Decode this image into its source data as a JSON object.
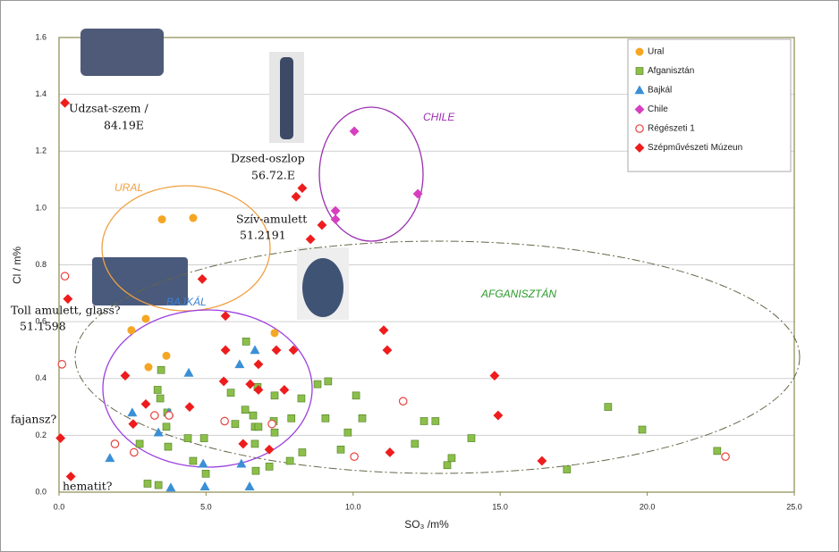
{
  "chart_data": {
    "type": "scatter",
    "x_label": "SO₃ /m%",
    "y_label": "Cl / m%",
    "xlim": [
      0,
      25
    ],
    "ylim": [
      0,
      1.6
    ],
    "xticks": [
      {
        "value": 0,
        "label": "0.0"
      },
      {
        "value": 5,
        "label": "5.0"
      },
      {
        "value": 10,
        "label": "10.0"
      },
      {
        "value": 15,
        "label": "15.0"
      },
      {
        "value": 20,
        "label": "20.0"
      },
      {
        "value": 25,
        "label": "25.0"
      }
    ],
    "yticks": [
      {
        "value": 0,
        "label": "0.0"
      },
      0.2,
      0.4,
      0.6,
      0.8,
      {
        "value": 1,
        "label": "1.0"
      },
      1.2,
      1.4,
      1.6
    ],
    "grid": true,
    "legend": "upper right",
    "annotations": [
      "URAL",
      "BAJKÁL",
      "CHILE",
      "AFGANISZTÁN",
      "Udzsat-szem /",
      "84.19E",
      "Dzsed-oszlop",
      "56.72.E",
      "Szív-amulett",
      "51.2191",
      "Toll amulett, glass?",
      "51.1598",
      "fajansz?",
      "hematit?"
    ],
    "series": [
      {
        "name": "Ural",
        "color": "#f5a623",
        "marker": "circle",
        "filled": true,
        "x": [
          3.5,
          4.56,
          2.46,
          2.95,
          3.65,
          3.04,
          7.33
        ],
        "values": [
          0.96,
          0.965,
          0.57,
          0.61,
          0.48,
          0.44,
          0.56
        ]
      },
      {
        "name": "Afganisztán",
        "color": "#8cbf4a",
        "marker": "square",
        "filled": true,
        "x": [
          3.35,
          3.44,
          3.47,
          3.68,
          3.65,
          3.71,
          2.74,
          3.01,
          3.38,
          4.38,
          4.56,
          4.93,
          4.99,
          5.84,
          5.99,
          6.36,
          6.33,
          6.6,
          6.66,
          6.66,
          6.69,
          6.75,
          6.78,
          7.3,
          7.33,
          7.33,
          7.15,
          7.9,
          7.85,
          8.24,
          8.27,
          8.79,
          9.15,
          9.06,
          9.58,
          9.82,
          10.1,
          10.31,
          12.1,
          12.41,
          12.8,
          13.2,
          13.35,
          14.02,
          17.27,
          18.67,
          19.83,
          22.38
        ],
        "values": [
          0.36,
          0.33,
          0.43,
          0.28,
          0.23,
          0.16,
          0.17,
          0.03,
          0.025,
          0.19,
          0.11,
          0.19,
          0.065,
          0.35,
          0.24,
          0.53,
          0.29,
          0.27,
          0.23,
          0.17,
          0.075,
          0.37,
          0.23,
          0.25,
          0.21,
          0.34,
          0.09,
          0.26,
          0.11,
          0.33,
          0.14,
          0.38,
          0.39,
          0.26,
          0.15,
          0.21,
          0.34,
          0.26,
          0.17,
          0.25,
          0.25,
          0.095,
          0.12,
          0.19,
          0.08,
          0.3,
          0.22,
          0.145
        ]
      },
      {
        "name": "Bajkál",
        "color": "#3b8fd6",
        "marker": "triangle",
        "filled": true,
        "x": [
          1.73,
          2.49,
          3.38,
          3.74,
          3.8,
          4.41,
          4.9,
          4.96,
          6.14,
          6.2,
          6.66,
          6.48
        ],
        "values": [
          0.12,
          0.28,
          0.21,
          0.28,
          0.016,
          0.42,
          0.1,
          0.02,
          0.45,
          0.1,
          0.5,
          0.02
        ]
      },
      {
        "name": "Chile",
        "color": "#d63fbf",
        "marker": "diamond",
        "filled": true,
        "x": [
          10.04,
          9.4,
          9.4,
          12.2
        ],
        "values": [
          1.27,
          0.99,
          0.96,
          1.05
        ]
      },
      {
        "name": "Régészeti 1",
        "color": "#e8413c",
        "marker": "circle",
        "filled": false,
        "x": [
          0.2,
          0.1,
          1.9,
          2.55,
          3.25,
          3.74,
          5.63,
          7.24,
          10.04,
          11.7,
          22.66
        ],
        "values": [
          0.76,
          0.45,
          0.17,
          0.14,
          0.27,
          0.27,
          0.25,
          0.24,
          0.125,
          0.32,
          0.125
        ]
      },
      {
        "name": "Szépművészeti Múzeun",
        "color": "#ee1c1c",
        "marker": "diamond",
        "filled": true,
        "x": [
          0.2,
          0.3,
          0.05,
          0.4,
          2.25,
          2.52,
          2.95,
          4.44,
          4.87,
          5.66,
          5.66,
          5.6,
          6.26,
          6.5,
          6.78,
          6.78,
          7.15,
          7.66,
          7.39,
          7.97,
          8.06,
          8.27,
          8.55,
          8.94,
          11.04,
          11.16,
          11.25,
          14.81,
          14.93,
          16.42
        ],
        "values": [
          1.37,
          0.68,
          0.19,
          0.055,
          0.41,
          0.24,
          0.31,
          0.3,
          0.75,
          0.62,
          0.5,
          0.39,
          0.17,
          0.38,
          0.36,
          0.45,
          0.15,
          0.36,
          0.5,
          0.5,
          1.04,
          1.07,
          0.89,
          0.94,
          0.57,
          0.5,
          0.14,
          0.41,
          0.27,
          0.11
        ]
      }
    ]
  }
}
